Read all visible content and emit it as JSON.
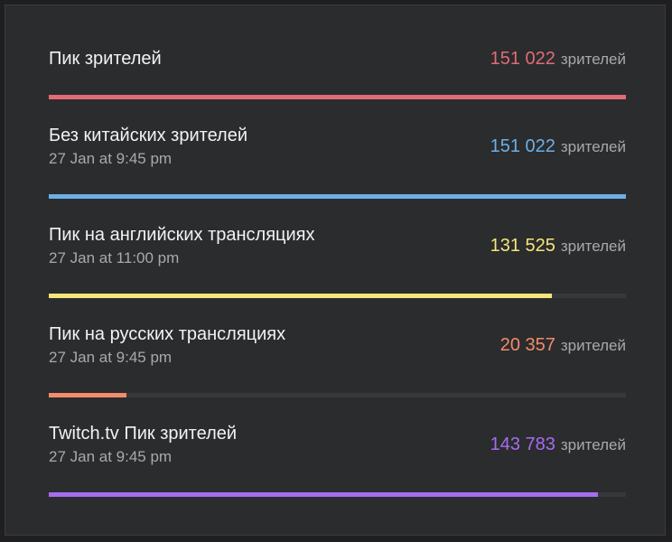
{
  "unit": "зрителей",
  "stats": [
    {
      "title": "Пик зрителей",
      "date": "",
      "value": "151 022",
      "fraction": 1.0,
      "color": "#e06c75"
    },
    {
      "title": "Без китайских зрителей",
      "date": "27 Jan at 9:45 pm",
      "value": "151 022",
      "fraction": 1.0,
      "color": "#6cb0e6"
    },
    {
      "title": "Пик на английских трансляциях",
      "date": "27 Jan at 11:00 pm",
      "value": "131 525",
      "fraction": 0.871,
      "color": "#f5e67a"
    },
    {
      "title": "Пик на русских трансляциях",
      "date": "27 Jan at 9:45 pm",
      "value": "20 357",
      "fraction": 0.135,
      "color": "#f28c6a"
    },
    {
      "title": "Twitch.tv Пик зрителей",
      "date": "27 Jan at 9:45 pm",
      "value": "143 783",
      "fraction": 0.952,
      "color": "#a56cf0"
    }
  ]
}
